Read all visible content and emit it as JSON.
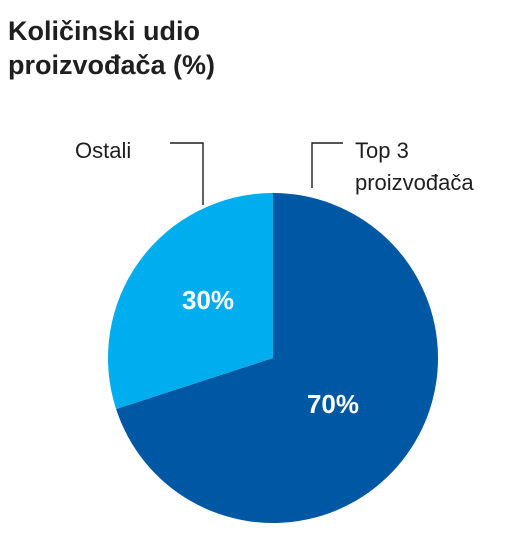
{
  "title_lines": [
    "Količinski udio",
    "proizvođača (%)"
  ],
  "chart_data": {
    "type": "pie",
    "title": "Količinski udio proizvođača (%)",
    "slices": [
      {
        "name": "Top 3 proizvođača",
        "name_lines": [
          "Top 3",
          "proizvođača"
        ],
        "value": 70,
        "label": "70%",
        "color": "#0057a3"
      },
      {
        "name": "Ostali",
        "name_lines": [
          "Ostali"
        ],
        "value": 30,
        "label": "30%",
        "color": "#00aeef"
      }
    ]
  }
}
